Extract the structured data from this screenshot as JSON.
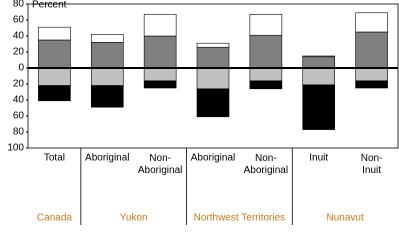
{
  "chart_data": {
    "type": "diverging-stacked-bar",
    "y_label": "Percent",
    "groups": [
      {
        "label": "Canada",
        "categories": [
          "Total"
        ]
      },
      {
        "label": "Yukon",
        "categories": [
          "Aboriginal",
          "Non-Aboriginal"
        ]
      },
      {
        "label": "Northwest Territories",
        "categories": [
          "Aboriginal",
          "Non-Aboriginal"
        ]
      },
      {
        "label": "Nunavut",
        "categories": [
          "Inuit",
          "Non-Inuit"
        ]
      }
    ],
    "series": [
      {
        "color": "#808080",
        "values": [
          35,
          32,
          40,
          26,
          41,
          14,
          45
        ]
      },
      {
        "color": "#ffffff",
        "values": [
          16,
          10,
          27,
          5,
          26,
          1,
          24
        ]
      },
      {
        "color": "#c0c0c0",
        "values": [
          -22,
          -22,
          -16,
          -26,
          -16,
          -21,
          -16
        ]
      },
      {
        "color": "#000000",
        "values": [
          -19,
          -27,
          -9,
          -35,
          -10,
          -56,
          -9
        ]
      }
    ],
    "group_color": "#c8781e",
    "ylim": [
      -100,
      80
    ],
    "yticks": [
      80,
      60,
      40,
      20,
      0,
      {
        "value": -20,
        "label": "20"
      },
      {
        "value": -40,
        "label": "40"
      },
      {
        "value": -60,
        "label": "60"
      },
      {
        "value": -80,
        "label": "80"
      },
      {
        "value": -100,
        "label": "100"
      }
    ]
  }
}
